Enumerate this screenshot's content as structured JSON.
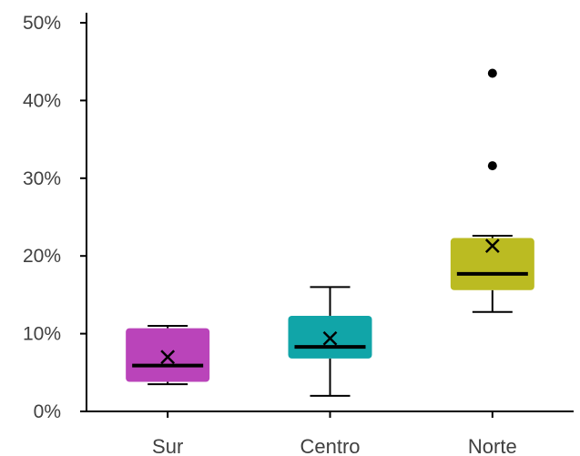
{
  "chart_data": {
    "type": "box",
    "title": "",
    "xlabel": "",
    "ylabel": "",
    "ylim": [
      0,
      50
    ],
    "y_ticks": [
      {
        "value": 0,
        "label": "0%"
      },
      {
        "value": 10,
        "label": "10%"
      },
      {
        "value": 20,
        "label": "20%"
      },
      {
        "value": 30,
        "label": "30%"
      },
      {
        "value": 40,
        "label": "40%"
      },
      {
        "value": 50,
        "label": "50%"
      }
    ],
    "grid": false,
    "legend": "none",
    "categories": [
      "Sur",
      "Centro",
      "Norte"
    ],
    "boxes": [
      {
        "category": "Sur",
        "color": "#BA44BA",
        "whisker_low": 3.5,
        "q1": 3.8,
        "median": 5.9,
        "q3": 10.7,
        "whisker_high": 11.0,
        "mean": 7.0,
        "outliers": []
      },
      {
        "category": "Centro",
        "color": "#11A5A8",
        "whisker_low": 2.0,
        "q1": 6.8,
        "median": 8.3,
        "q3": 12.3,
        "whisker_high": 16.0,
        "mean": 9.4,
        "outliers": []
      },
      {
        "category": "Norte",
        "color": "#BBBB22",
        "whisker_low": 12.8,
        "q1": 15.6,
        "median": 17.7,
        "q3": 22.3,
        "whisker_high": 22.6,
        "mean": 21.3,
        "outliers": [
          31.6,
          43.5
        ]
      }
    ]
  }
}
